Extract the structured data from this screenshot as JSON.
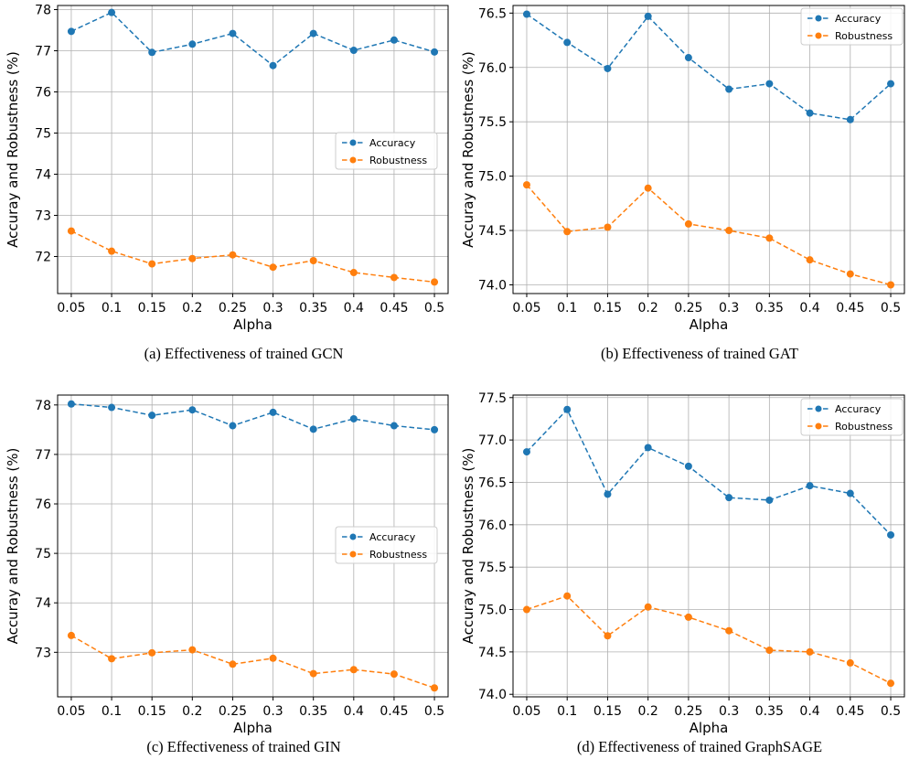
{
  "chart_data": [
    {
      "type": "line",
      "x": [
        "0.05",
        "0.1",
        "0.15",
        "0.2",
        "0.25",
        "0.3",
        "0.35",
        "0.4",
        "0.45",
        "0.5"
      ],
      "series": [
        {
          "name": "Accuracy",
          "values": [
            77.47,
            77.93,
            76.96,
            77.16,
            77.42,
            76.64,
            77.42,
            77.01,
            77.26,
            76.97
          ]
        },
        {
          "name": "Robustness",
          "values": [
            72.62,
            72.13,
            71.82,
            71.95,
            72.04,
            71.74,
            71.9,
            71.61,
            71.49,
            71.38
          ]
        }
      ],
      "xlabel": "Alpha",
      "ylabel": "Accuray and Robustness (%)",
      "ylim": [
        71.1,
        78.1
      ],
      "yticks": [
        "72",
        "73",
        "74",
        "75",
        "76",
        "77",
        "78"
      ],
      "caption": "(a)  Effectiveness of trained GCN",
      "legend_position": "center-right",
      "grid": true
    },
    {
      "type": "line",
      "x": [
        "0.05",
        "0.1",
        "0.15",
        "0.2",
        "0.25",
        "0.3",
        "0.35",
        "0.4",
        "0.45",
        "0.5"
      ],
      "series": [
        {
          "name": "Accuracy",
          "values": [
            76.49,
            76.23,
            75.99,
            76.47,
            76.09,
            75.8,
            75.85,
            75.58,
            75.52,
            75.85
          ]
        },
        {
          "name": "Robustness",
          "values": [
            74.92,
            74.49,
            74.53,
            74.89,
            74.56,
            74.5,
            74.43,
            74.23,
            74.1,
            74.0
          ]
        }
      ],
      "xlabel": "Alpha",
      "ylabel": "Accuray and Robustness (%)",
      "ylim": [
        73.92,
        76.57
      ],
      "yticks": [
        "74.0",
        "74.5",
        "75.0",
        "75.5",
        "76.0",
        "76.5"
      ],
      "caption": "(b)  Effectiveness of trained GAT",
      "legend_position": "upper-right",
      "grid": true
    },
    {
      "type": "line",
      "x": [
        "0.05",
        "0.1",
        "0.15",
        "0.2",
        "0.25",
        "0.3",
        "0.35",
        "0.4",
        "0.45",
        "0.5"
      ],
      "series": [
        {
          "name": "Accuracy",
          "values": [
            78.02,
            77.95,
            77.79,
            77.9,
            77.58,
            77.85,
            77.51,
            77.72,
            77.58,
            77.5
          ]
        },
        {
          "name": "Robustness",
          "values": [
            73.34,
            72.87,
            72.99,
            73.05,
            72.76,
            72.88,
            72.57,
            72.65,
            72.56,
            72.28
          ]
        }
      ],
      "xlabel": "Alpha",
      "ylabel": "Accuray and Robustness (%)",
      "ylim": [
        72.1,
        78.2
      ],
      "yticks": [
        "73",
        "74",
        "75",
        "76",
        "77",
        "78"
      ],
      "caption": "(c)  Effectiveness of trained GIN",
      "legend_position": "center-right",
      "grid": true
    },
    {
      "type": "line",
      "x": [
        "0.05",
        "0.1",
        "0.15",
        "0.2",
        "0.25",
        "0.3",
        "0.35",
        "0.4",
        "0.45",
        "0.5"
      ],
      "series": [
        {
          "name": "Accuracy",
          "values": [
            76.86,
            77.36,
            76.36,
            76.91,
            76.69,
            76.32,
            76.29,
            76.46,
            76.37,
            75.88
          ]
        },
        {
          "name": "Robustness",
          "values": [
            75.0,
            75.16,
            74.69,
            75.03,
            74.91,
            74.75,
            74.52,
            74.5,
            74.37,
            74.13
          ]
        }
      ],
      "xlabel": "Alpha",
      "ylabel": "Accuray and Robustness (%)",
      "ylim": [
        73.97,
        77.53
      ],
      "yticks": [
        "74.0",
        "74.5",
        "75.0",
        "75.5",
        "76.0",
        "76.5",
        "77.0",
        "77.5"
      ],
      "caption": "(d)  Effectiveness of trained GraphSAGE",
      "legend_position": "upper-right",
      "grid": true
    }
  ],
  "colors": {
    "accuracy": "#1f77b4",
    "robustness": "#ff7f0e",
    "grid": "#b0b0b0"
  }
}
